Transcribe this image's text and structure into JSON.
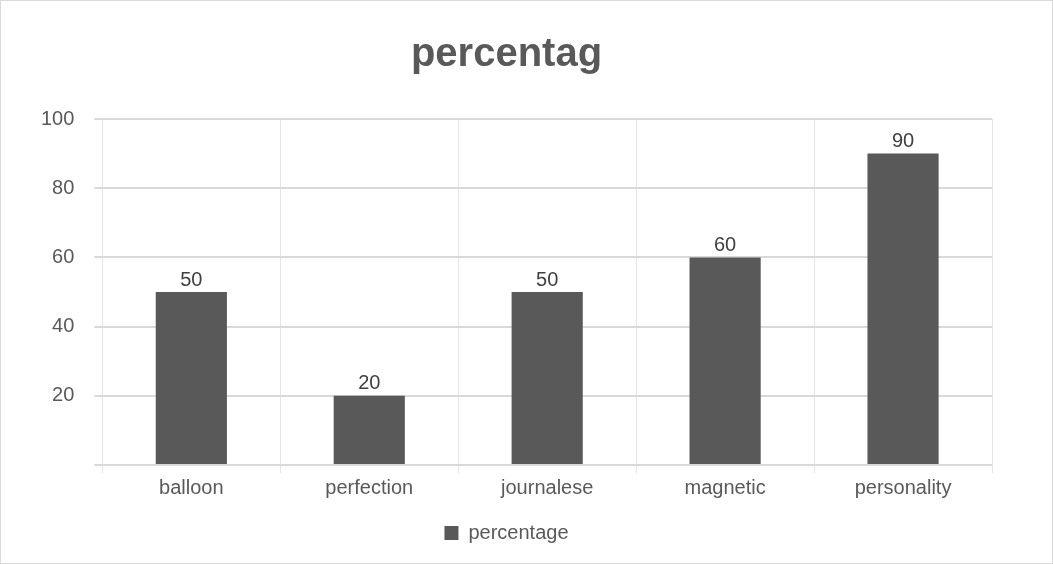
{
  "chart_data": {
    "type": "bar",
    "title": "percentag",
    "categories": [
      "balloon",
      "perfection",
      "journalese",
      "magnetic",
      "personality"
    ],
    "series": [
      {
        "name": "percentage",
        "color": "#595959",
        "values": [
          50,
          20,
          50,
          60,
          90
        ]
      }
    ],
    "ylim": [
      0,
      100
    ],
    "yticks": [
      {
        "value": 0,
        "label": null
      },
      20,
      40,
      60,
      80,
      100
    ],
    "grid": true,
    "legend": "bottom",
    "data_labels": true
  }
}
